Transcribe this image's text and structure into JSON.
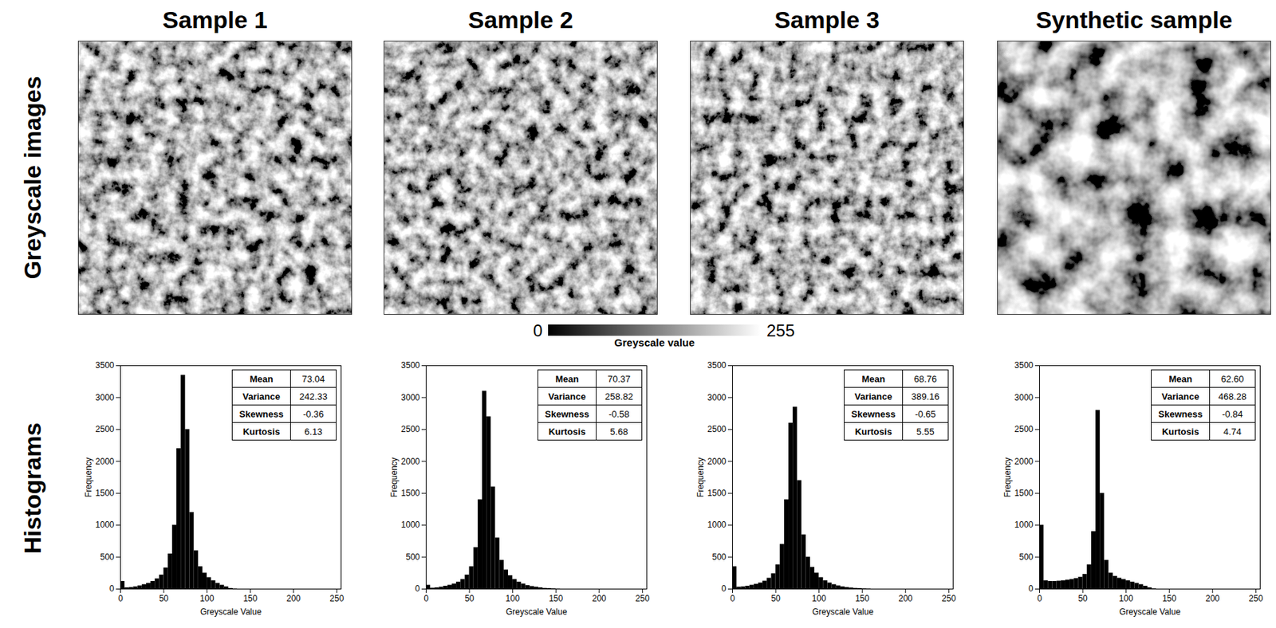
{
  "row_labels": [
    "Greyscale images",
    "Histograms"
  ],
  "colorbar": {
    "label": "Greyscale value",
    "range": [
      0,
      255
    ],
    "ticks": [
      0,
      255
    ]
  },
  "chart_data": [
    {
      "type": "histogram",
      "title": "Sample 1",
      "xlabel": "Greyscale Value",
      "ylabel": "Frequency",
      "color": "#000000",
      "bins": [
        0,
        5,
        10,
        15,
        20,
        25,
        30,
        35,
        40,
        45,
        50,
        55,
        60,
        65,
        70,
        75,
        80,
        85,
        90,
        95,
        100,
        105,
        110,
        115,
        120,
        125,
        130,
        135,
        140,
        145,
        150,
        155,
        160
      ],
      "counts": [
        120,
        20,
        25,
        35,
        50,
        70,
        90,
        120,
        160,
        220,
        330,
        550,
        1000,
        2200,
        3350,
        2500,
        1200,
        600,
        350,
        250,
        180,
        130,
        90,
        60,
        35,
        10,
        3,
        0,
        0,
        0,
        0,
        0
      ],
      "xlim": [
        0,
        255
      ],
      "xticks": [
        0,
        50,
        100,
        150,
        200,
        250
      ],
      "ylim": [
        0,
        3500
      ],
      "yticks": [
        0,
        500,
        1000,
        1500,
        2000,
        2500,
        3000,
        3500
      ],
      "stats": [
        [
          "Mean",
          "73.04"
        ],
        [
          "Variance",
          "242.33"
        ],
        [
          "Skewness",
          "-0.36"
        ],
        [
          "Kurtosis",
          "6.13"
        ]
      ]
    },
    {
      "type": "histogram",
      "title": "Sample 2",
      "xlabel": "Greyscale Value",
      "ylabel": "Frequency",
      "color": "#000000",
      "bins": [
        0,
        5,
        10,
        15,
        20,
        25,
        30,
        35,
        40,
        45,
        50,
        55,
        60,
        65,
        70,
        75,
        80,
        85,
        90,
        95,
        100,
        105,
        110,
        115,
        120,
        125,
        130,
        135,
        140,
        145,
        150,
        155,
        160
      ],
      "counts": [
        60,
        15,
        20,
        30,
        45,
        60,
        80,
        110,
        150,
        220,
        350,
        650,
        1400,
        3100,
        2700,
        1600,
        800,
        450,
        300,
        210,
        150,
        110,
        80,
        55,
        40,
        30,
        20,
        12,
        8,
        5,
        2,
        0
      ],
      "xlim": [
        0,
        255
      ],
      "xticks": [
        0,
        50,
        100,
        150,
        200,
        250
      ],
      "ylim": [
        0,
        3500
      ],
      "yticks": [
        0,
        500,
        1000,
        1500,
        2000,
        2500,
        3000,
        3500
      ],
      "stats": [
        [
          "Mean",
          "70.37"
        ],
        [
          "Variance",
          "258.82"
        ],
        [
          "Skewness",
          "-0.58"
        ],
        [
          "Kurtosis",
          "5.68"
        ]
      ]
    },
    {
      "type": "histogram",
      "title": "Sample 3",
      "xlabel": "Greyscale Value",
      "ylabel": "Frequency",
      "color": "#000000",
      "bins": [
        0,
        5,
        10,
        15,
        20,
        25,
        30,
        35,
        40,
        45,
        50,
        55,
        60,
        65,
        70,
        75,
        80,
        85,
        90,
        95,
        100,
        105,
        110,
        115,
        120,
        125,
        130,
        135,
        140,
        145,
        150,
        155,
        160
      ],
      "counts": [
        350,
        30,
        35,
        45,
        60,
        75,
        95,
        125,
        170,
        240,
        380,
        700,
        1400,
        2600,
        2850,
        1700,
        850,
        500,
        340,
        250,
        180,
        130,
        95,
        70,
        50,
        35,
        25,
        18,
        12,
        8,
        5,
        3
      ],
      "xlim": [
        0,
        255
      ],
      "xticks": [
        0,
        50,
        100,
        150,
        200,
        250
      ],
      "ylim": [
        0,
        3500
      ],
      "yticks": [
        0,
        500,
        1000,
        1500,
        2000,
        2500,
        3000,
        3500
      ],
      "stats": [
        [
          "Mean",
          "68.76"
        ],
        [
          "Variance",
          "389.16"
        ],
        [
          "Skewness",
          "-0.65"
        ],
        [
          "Kurtosis",
          "5.55"
        ]
      ]
    },
    {
      "type": "histogram",
      "title": "Synthetic sample",
      "xlabel": "Greyscale Value",
      "ylabel": "Frequency",
      "color": "#000000",
      "bins": [
        0,
        5,
        10,
        15,
        20,
        25,
        30,
        35,
        40,
        45,
        50,
        55,
        60,
        65,
        70,
        75,
        80,
        85,
        90,
        95,
        100,
        105,
        110,
        115,
        120,
        125,
        130,
        135,
        140,
        145,
        150,
        155,
        160
      ],
      "counts": [
        1000,
        130,
        120,
        120,
        125,
        130,
        140,
        150,
        165,
        185,
        230,
        380,
        900,
        2800,
        1500,
        450,
        250,
        200,
        170,
        150,
        130,
        110,
        90,
        70,
        45,
        20,
        5,
        0,
        0,
        0,
        0,
        0
      ],
      "xlim": [
        0,
        255
      ],
      "xticks": [
        0,
        50,
        100,
        150,
        200,
        250
      ],
      "ylim": [
        0,
        3500
      ],
      "yticks": [
        0,
        500,
        1000,
        1500,
        2000,
        2500,
        3000,
        3500
      ],
      "stats": [
        [
          "Mean",
          "62.60"
        ],
        [
          "Variance",
          "468.28"
        ],
        [
          "Skewness",
          "-0.84"
        ],
        [
          "Kurtosis",
          "4.74"
        ]
      ]
    }
  ]
}
